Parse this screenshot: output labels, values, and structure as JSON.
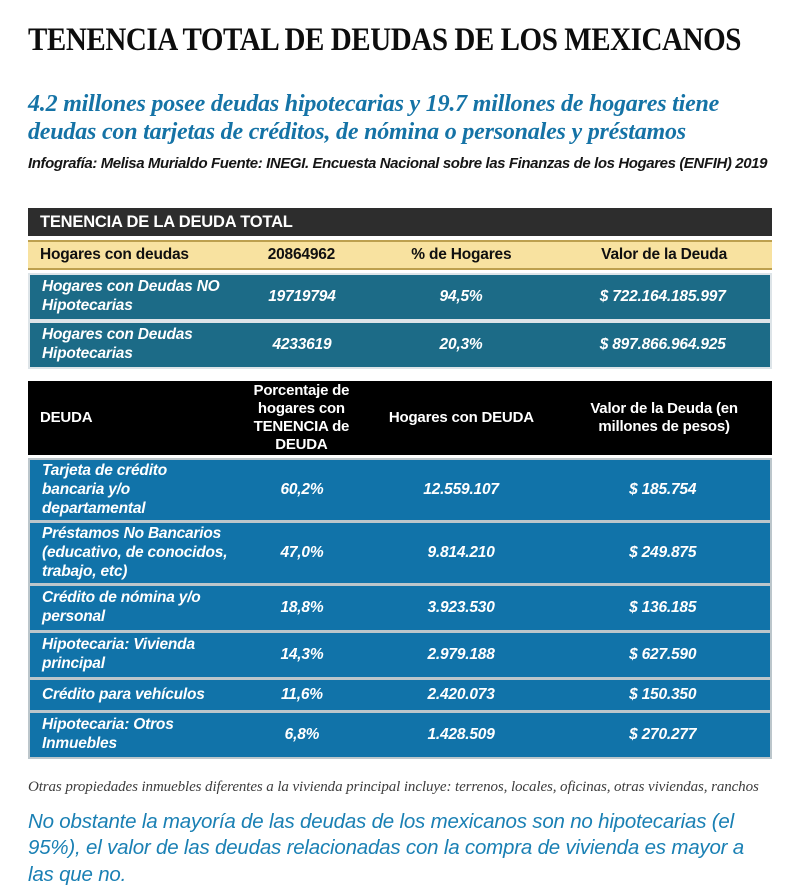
{
  "header": {
    "title": "TENENCIA TOTAL DE DEUDAS DE LOS MEXICANOS",
    "subtitle": "4.2 millones posee deudas hipotecarias y 19.7 millones de hogares tiene deudas con tarjetas de créditos, de nómina o personales y préstamos",
    "credit": "Infografía: Melisa Murialdo Fuente: INEGI. Encuesta Nacional sobre las Finanzas de los Hogares (ENFIH) 2019"
  },
  "footer": {
    "footnote": "Otras propiedades inmuebles diferentes a la vivienda principal incluye: terrenos, locales, oficinas, otras viviendas, ranchos",
    "conclusion": "No obstante la mayoría de las deudas de los mexicanos son no hipotecarias (el 95%), el valor de las deudas relacionadas con la compra de vivienda es mayor a las que no."
  },
  "colors": {
    "subtitle-blue": "#1573a6",
    "conclusion-blue": "#1a80b4",
    "t1-header-bg": "#2d2d2d",
    "t2-header-bg": "#000000",
    "subheader-yellow": "#f8e2a0",
    "gold-border": "#bda04e",
    "teal": "#1c6b87",
    "blue": "#1173a9",
    "t1-separator": "#dde4e8",
    "t2-separator": "#bcc6cb",
    "footnote-gray": "#3d3d3d"
  },
  "chart_data": [
    {
      "type": "table",
      "title": "TENENCIA DE LA DEUDA TOTAL",
      "columns": [
        "Hogares con deudas",
        "20864962",
        "% de Hogares",
        "Valor de la Deuda"
      ],
      "rows": [
        [
          "Hogares con Deudas NO Hipotecarias",
          "19719794",
          "94,5%",
          "$ 722.164.185.997"
        ],
        [
          "Hogares con Deudas Hipotecarias",
          "4233619",
          "20,3%",
          "$ 897.866.964.925"
        ]
      ]
    },
    {
      "type": "table",
      "title": "DEUDA",
      "columns": [
        "DEUDA",
        "Porcentaje de hogares con TENENCIA de DEUDA",
        "Hogares con DEUDA",
        "Valor de la Deuda (en millones de pesos)"
      ],
      "rows": [
        [
          "Tarjeta de crédito bancaria y/o departamental",
          "60,2%",
          "12.559.107",
          "$ 185.754"
        ],
        [
          "Préstamos No Bancarios (educativo, de conocidos, trabajo, etc)",
          "47,0%",
          "9.814.210",
          "$ 249.875"
        ],
        [
          "Crédito de nómina y/o personal",
          "18,8%",
          "3.923.530",
          "$ 136.185"
        ],
        [
          "Hipotecaria: Vivienda principal",
          "14,3%",
          "2.979.188",
          "$ 627.590"
        ],
        [
          "Crédito para vehículos",
          "11,6%",
          "2.420.073",
          "$ 150.350"
        ],
        [
          "Hipotecaria: Otros Inmuebles",
          "6,8%",
          "1.428.509",
          "$ 270.277"
        ]
      ]
    }
  ]
}
